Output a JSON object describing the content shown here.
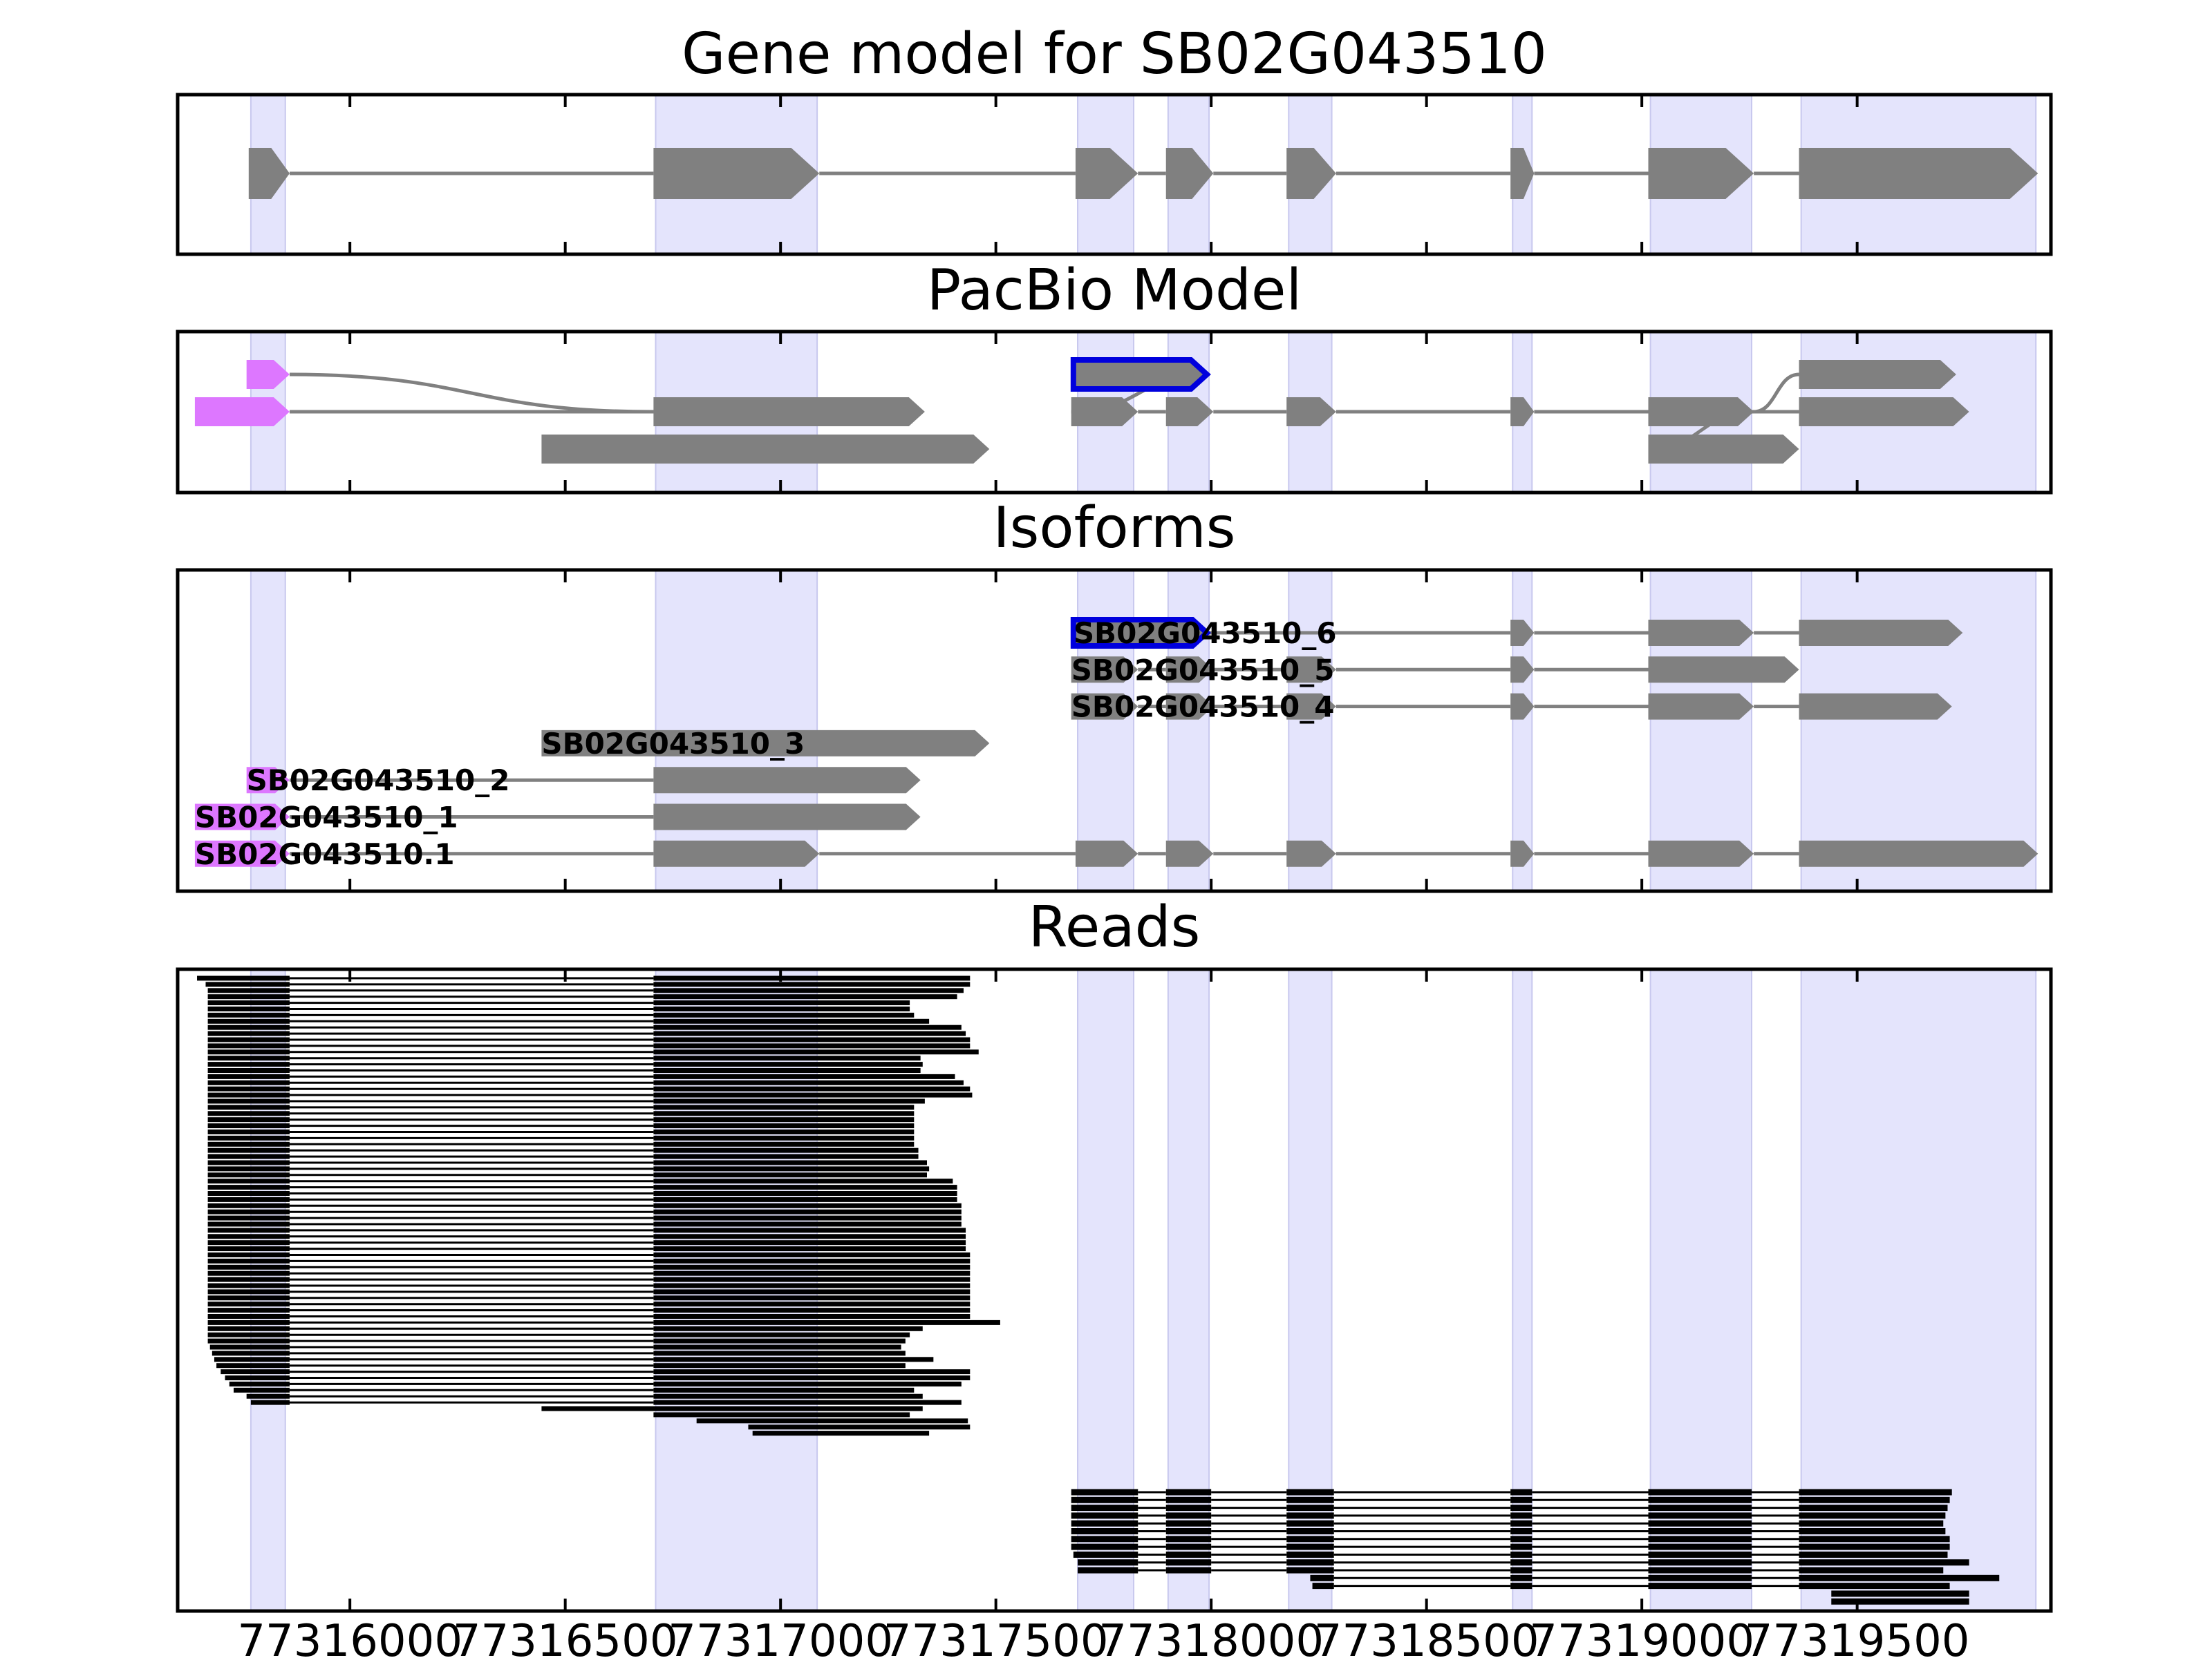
{
  "panels": [
    {
      "id": "gene-model",
      "title": "Gene model for SB02G043510",
      "rows": [
        {
          "label": "",
          "color": "",
          "outline": "",
          "exons": [
            [
              77315765,
              77315860
            ],
            [
              77316705,
              77317090
            ],
            [
              77317685,
              77317830
            ],
            [
              77317895,
              77318005
            ],
            [
              77318175,
              77318290
            ],
            [
              77318695,
              77318750
            ],
            [
              77319015,
              77319260
            ],
            [
              77319365,
              77319920
            ]
          ]
        }
      ],
      "bridges": []
    },
    {
      "id": "pacbio-model",
      "title": "PacBio Model",
      "rows": [
        {
          "label": "",
          "color": "#dd77ff",
          "outline": "",
          "exons": [
            [
              77315760,
              77315860
            ]
          ]
        },
        {
          "label": "",
          "color": "#808080",
          "outline": "#0000dd",
          "exons": [
            [
              77317680,
              77317990
            ]
          ]
        },
        {
          "label": "",
          "color": "#808080",
          "outline": "",
          "exons": [
            [
              77319365,
              77319730
            ]
          ]
        },
        {
          "label": "",
          "color": "#dd77ff",
          "outline": "",
          "exons": [
            [
              77315640,
              77315860
            ]
          ]
        },
        {
          "label": "",
          "color": "#808080",
          "outline": "",
          "exons": [
            [
              77316705,
              77317335
            ]
          ]
        },
        {
          "label": "",
          "color": "#808080",
          "outline": "",
          "exons": [
            [
              77317675,
              77317830
            ],
            [
              77317895,
              77318005
            ],
            [
              77318175,
              77318290
            ],
            [
              77318695,
              77318750
            ],
            [
              77319015,
              77319260
            ]
          ]
        },
        {
          "label": "",
          "color": "#808080",
          "outline": "",
          "exons": [
            [
              77319365,
              77319760
            ]
          ]
        },
        {
          "label": "",
          "color": "#808080",
          "outline": "",
          "exons": [
            [
              77316445,
              77317485
            ]
          ]
        },
        {
          "label": "",
          "color": "#808080",
          "outline": "",
          "exons": [
            [
              77319015,
              77319365
            ]
          ]
        }
      ],
      "rowSlots": [
        0,
        0,
        0,
        1,
        1,
        1,
        1,
        2,
        2
      ],
      "connect": [
        [
          0,
          4,
          "curve"
        ],
        [
          3,
          4,
          "line"
        ],
        [
          1,
          5,
          "curve"
        ],
        [
          5,
          6,
          "curve"
        ],
        [
          5,
          8,
          "curve"
        ],
        [
          5,
          2,
          "curve"
        ]
      ]
    },
    {
      "id": "isoforms",
      "title": "Isoforms",
      "rows": [
        {
          "label": "SB02G043510_6",
          "color": "#808080",
          "outline": "#0000dd",
          "exons": [
            [
              77317680,
              77317990
            ],
            [
              77318695,
              77318750
            ],
            [
              77319015,
              77319260
            ],
            [
              77319365,
              77319745
            ]
          ]
        },
        {
          "label": "SB02G043510_5",
          "color": "#808080",
          "outline": "",
          "exons": [
            [
              77317675,
              77317830
            ],
            [
              77317895,
              77318005
            ],
            [
              77318175,
              77318290
            ],
            [
              77318695,
              77318750
            ],
            [
              77319015,
              77319365
            ]
          ]
        },
        {
          "label": "SB02G043510_4",
          "color": "#808080",
          "outline": "",
          "exons": [
            [
              77317675,
              77317830
            ],
            [
              77317895,
              77318005
            ],
            [
              77318175,
              77318290
            ],
            [
              77318695,
              77318750
            ],
            [
              77319015,
              77319260
            ],
            [
              77319365,
              77319720
            ]
          ]
        },
        {
          "label": "SB02G043510_3",
          "color": "#808080",
          "outline": "",
          "exons": [
            [
              77316445,
              77317485
            ]
          ]
        },
        {
          "label": "SB02G043510_2",
          "color": "#808080",
          "head": "#dd77ff",
          "exons": [
            [
              77315760,
              77315860
            ],
            [
              77316705,
              77317325
            ]
          ]
        },
        {
          "label": "SB02G043510_1",
          "color": "#808080",
          "head": "#dd77ff",
          "exons": [
            [
              77315640,
              77315860
            ],
            [
              77316705,
              77317325
            ]
          ]
        },
        {
          "label": "SB02G043510.1",
          "color": "#808080",
          "head": "#dd77ff",
          "exons": [
            [
              77315640,
              77315860
            ],
            [
              77316705,
              77317090
            ],
            [
              77317685,
              77317830
            ],
            [
              77317895,
              77318005
            ],
            [
              77318175,
              77318290
            ],
            [
              77318695,
              77318750
            ],
            [
              77319015,
              77319260
            ],
            [
              77319365,
              77319920
            ]
          ]
        }
      ]
    },
    {
      "id": "reads",
      "title": "Reads"
    }
  ],
  "bands": [
    [
      77315770,
      77315850
    ],
    [
      77316710,
      77317085
    ],
    [
      77317690,
      77317820
    ],
    [
      77317900,
      77317995
    ],
    [
      77318180,
      77318280
    ],
    [
      77318700,
      77318745
    ],
    [
      77319020,
      77319255
    ],
    [
      77319370,
      77319915
    ]
  ],
  "chart_data": {
    "type": "gene-track",
    "xlim": [
      77315600,
      77319950
    ],
    "xticks": [
      77316000,
      77316500,
      77317000,
      77317500,
      77318000,
      77318500,
      77319000,
      77319500
    ],
    "xtick_labels": [
      "77316000",
      "77316500",
      "77317000",
      "77317500",
      "77318000",
      "77318500",
      "77319000",
      "77319500"
    ],
    "reads_group1": {
      "count": 75,
      "exon1_end": 77315860,
      "exon2_start": 77316705,
      "starts": [
        77315645,
        77315665,
        77315670,
        77315670,
        77315670,
        77315670,
        77315670,
        77315670,
        77315670,
        77315670,
        77315670,
        77315670,
        77315670,
        77315670,
        77315670,
        77315670,
        77315670,
        77315670,
        77315670,
        77315670,
        77315670,
        77315670,
        77315670,
        77315670,
        77315670,
        77315670,
        77315670,
        77315670,
        77315670,
        77315670,
        77315670,
        77315670,
        77315670,
        77315670,
        77315670,
        77315670,
        77315670,
        77315670,
        77315670,
        77315670,
        77315670,
        77315670,
        77315670,
        77315670,
        77315670,
        77315670,
        77315670,
        77315670,
        77315670,
        77315670,
        77315670,
        77315670,
        77315670,
        77315670,
        77315670,
        77315670,
        77315670,
        77315670,
        77315670,
        77315670,
        77315675,
        77315680,
        77315685,
        77315690,
        77315700,
        77315710,
        77315720,
        77315730,
        77315760,
        77315770,
        77316445,
        77316705,
        77316805,
        77316925,
        77316935,
        77317015
      ],
      "ends": [
        77317440,
        77317440,
        77317425,
        77317410,
        77317300,
        77317300,
        77317310,
        77317345,
        77317420,
        77317430,
        77317440,
        77317440,
        77317460,
        77317325,
        77317330,
        77317325,
        77317405,
        77317425,
        77317440,
        77317445,
        77317335,
        77317310,
        77317310,
        77317310,
        77317310,
        77317310,
        77317310,
        77317310,
        77317320,
        77317320,
        77317340,
        77317345,
        77317340,
        77317400,
        77317410,
        77317410,
        77317410,
        77317420,
        77317420,
        77317420,
        77317420,
        77317430,
        77317430,
        77317430,
        77317430,
        77317440,
        77317440,
        77317440,
        77317440,
        77317440,
        77317440,
        77317440,
        77317440,
        77317440,
        77317440,
        77317440,
        77317510,
        77317330,
        77317300,
        77317290,
        77317280,
        77317290,
        77317355,
        77317290,
        77317440,
        77317440,
        77317420,
        77317310,
        77317330,
        77317420,
        77317330,
        77317300,
        77317435,
        77317440,
        77317345
      ]
    },
    "reads_group2": {
      "count": 15,
      "exons": [
        [
          77317675,
          77317830
        ],
        [
          77317895,
          77318000
        ],
        [
          77318175,
          77318285
        ],
        [
          77318695,
          77318745
        ],
        [
          77319015,
          77319255
        ],
        [
          77319365,
          77319720
        ]
      ],
      "starts": [
        77317675,
        77317675,
        77317675,
        77317675,
        77317675,
        77317675,
        77317675,
        77317675,
        77317680,
        77317690,
        77317690,
        77318230,
        77318235,
        77319440,
        77319440
      ],
      "ends": [
        77319720,
        77319715,
        77319710,
        77319705,
        77319700,
        77319705,
        77319715,
        77319715,
        77319710,
        77319760,
        77319700,
        77319830,
        77319715,
        77319760,
        77319760
      ]
    }
  }
}
